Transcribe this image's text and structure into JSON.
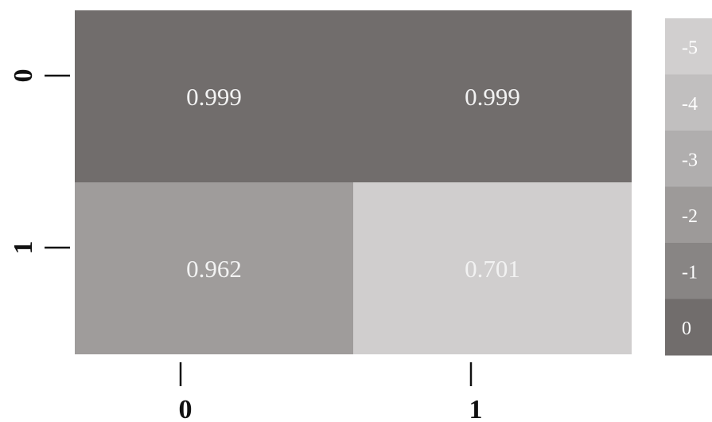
{
  "chart_data": {
    "type": "heatmap",
    "rows": [
      "0",
      "1"
    ],
    "cols": [
      "0",
      "1"
    ],
    "values": [
      [
        0.999,
        0.999
      ],
      [
        0.962,
        0.701
      ]
    ],
    "value_labels": [
      [
        "0.999",
        "0.999"
      ],
      [
        "0.962",
        "0.701"
      ]
    ],
    "colorbar": {
      "ticks": [
        "-5",
        "-4",
        "-3",
        "-2",
        "-1",
        "0"
      ],
      "colors": [
        "#d1cfcf",
        "#c1bfbf",
        "#b0aeae",
        "#9d9a99",
        "#888584",
        "#716d6c"
      ]
    },
    "colors": {
      "high": "#716d6c",
      "mid": "#7a7675",
      "low": "#d0cece",
      "text": "#f2f2f2"
    },
    "title": "",
    "xlabel": "",
    "ylabel": ""
  }
}
